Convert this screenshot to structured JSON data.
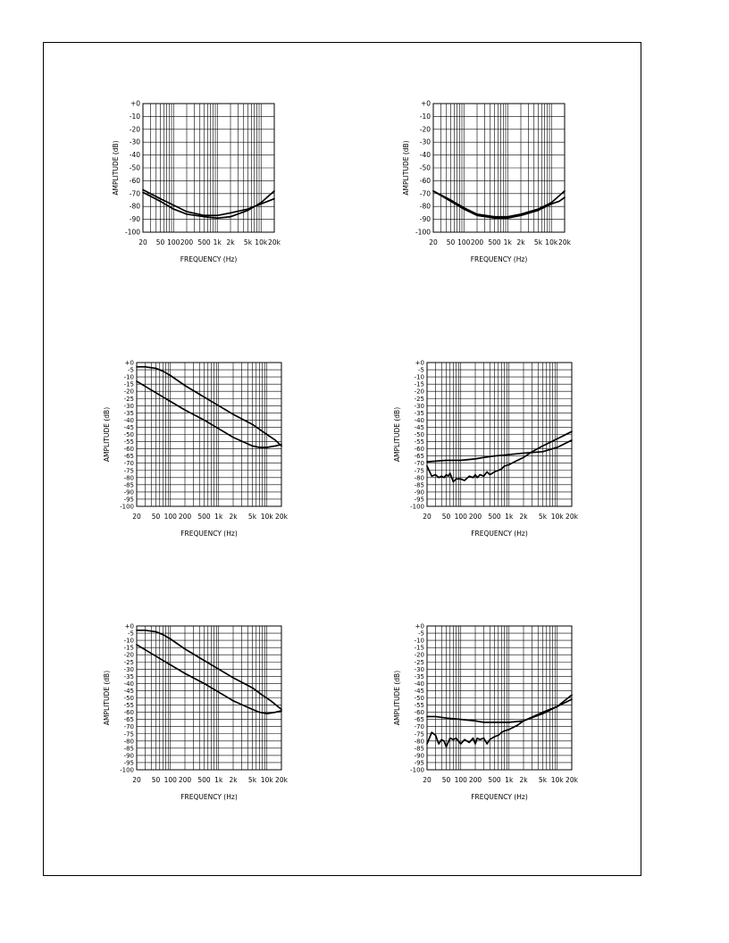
{
  "colors": {
    "line": "#000000",
    "grid": "#000000",
    "background": "#ffffff"
  },
  "chart_data": [
    {
      "type": "line",
      "x_scale": "log",
      "xlabel": "FREQUENCY (Hz)",
      "ylabel": "AMPLITUDE (dB)",
      "xlim": [
        20,
        20000
      ],
      "ylim": [
        -100,
        0
      ],
      "x_ticks": [
        20,
        50,
        100,
        200,
        500,
        1000,
        2000,
        5000,
        10000,
        20000
      ],
      "x_tick_labels": [
        "20",
        "50",
        "100",
        "200",
        "500",
        "1k",
        "2k",
        "5k",
        "10k",
        "20k"
      ],
      "y_ticks": [
        0,
        -10,
        -20,
        -30,
        -40,
        -50,
        -60,
        -70,
        -80,
        -90,
        -100
      ],
      "y_tick_labels": [
        "+0",
        "-10",
        "-20",
        "-30",
        "-40",
        "-50",
        "-60",
        "-70",
        "-80",
        "-90",
        "-100"
      ],
      "grid": true,
      "series": [
        {
          "x": [
            20,
            50,
            100,
            200,
            500,
            1000,
            2000,
            5000,
            10000,
            20000
          ],
          "y": [
            -67,
            -74,
            -79,
            -84,
            -87,
            -87,
            -85,
            -82,
            -78,
            -74
          ]
        },
        {
          "x": [
            20,
            50,
            100,
            200,
            500,
            1000,
            2000,
            5000,
            10000,
            20000
          ],
          "y": [
            -69,
            -76,
            -82,
            -86,
            -88,
            -89,
            -88,
            -83,
            -77,
            -68
          ]
        }
      ]
    },
    {
      "type": "line",
      "x_scale": "log",
      "xlabel": "FREQUENCY (Hz)",
      "ylabel": "AMPLITUDE (dB)",
      "xlim": [
        20,
        20000
      ],
      "ylim": [
        -100,
        0
      ],
      "x_ticks": [
        20,
        50,
        100,
        200,
        500,
        1000,
        2000,
        5000,
        10000,
        20000
      ],
      "x_tick_labels": [
        "20",
        "50",
        "100",
        "200",
        "500",
        "1k",
        "2k",
        "5k",
        "10k",
        "20k"
      ],
      "y_ticks": [
        0,
        -10,
        -20,
        -30,
        -40,
        -50,
        -60,
        -70,
        -80,
        -90,
        -100
      ],
      "y_tick_labels": [
        "+0",
        "-10",
        "-20",
        "-30",
        "-40",
        "-50",
        "-60",
        "-70",
        "-80",
        "-90",
        "-100"
      ],
      "grid": true,
      "series": [
        {
          "x": [
            20,
            50,
            100,
            200,
            500,
            1000,
            2000,
            5000,
            10000,
            20000
          ],
          "y": [
            -68,
            -75,
            -81,
            -86,
            -88,
            -88,
            -86,
            -82,
            -77,
            -68
          ]
        },
        {
          "x": [
            20,
            50,
            100,
            200,
            500,
            1000,
            2000,
            5000,
            10000,
            15000,
            20000
          ],
          "y": [
            -68,
            -76,
            -82,
            -87,
            -89,
            -89,
            -87,
            -83,
            -78,
            -76,
            -73
          ]
        }
      ]
    },
    {
      "type": "line",
      "x_scale": "log",
      "xlabel": "FREQUENCY (Hz)",
      "ylabel": "AMPLITUDE (dB)",
      "xlim": [
        20,
        20000
      ],
      "ylim": [
        -100,
        0
      ],
      "x_ticks": [
        20,
        50,
        100,
        200,
        500,
        1000,
        2000,
        5000,
        10000,
        20000
      ],
      "x_tick_labels": [
        "20",
        "50",
        "100",
        "200",
        "500",
        "1k",
        "2k",
        "5k",
        "10k",
        "20k"
      ],
      "y_ticks": [
        0,
        -5,
        -10,
        -15,
        -20,
        -25,
        -30,
        -35,
        -40,
        -45,
        -50,
        -55,
        -60,
        -65,
        -70,
        -75,
        -80,
        -85,
        -90,
        -95,
        -100
      ],
      "y_tick_labels": [
        "+0",
        "-5",
        "-10",
        "-15",
        "-20",
        "-25",
        "-30",
        "-35",
        "-40",
        "-45",
        "-50",
        "-55",
        "-60",
        "-65",
        "-70",
        "-75",
        "-80",
        "-85",
        "-90",
        "-95",
        "-100"
      ],
      "grid": true,
      "series": [
        {
          "x": [
            20,
            30,
            50,
            70,
            100,
            200,
            500,
            1000,
            2000,
            5000,
            10000,
            15000,
            20000
          ],
          "y": [
            -3,
            -3,
            -4,
            -6,
            -9,
            -16,
            -24,
            -30,
            -36,
            -43,
            -50,
            -54,
            -58
          ]
        },
        {
          "x": [
            20,
            50,
            100,
            200,
            500,
            1000,
            2000,
            5000,
            7000,
            10000,
            15000,
            20000
          ],
          "y": [
            -13,
            -21,
            -27,
            -33,
            -40,
            -46,
            -52,
            -58,
            -59,
            -59,
            -58,
            -57
          ]
        }
      ]
    },
    {
      "type": "line",
      "x_scale": "log",
      "xlabel": "FREQUENCY (Hz)",
      "ylabel": "AMPLITUDE (dB)",
      "xlim": [
        20,
        20000
      ],
      "ylim": [
        -100,
        0
      ],
      "x_ticks": [
        20,
        50,
        100,
        200,
        500,
        1000,
        2000,
        5000,
        10000,
        20000
      ],
      "x_tick_labels": [
        "20",
        "50",
        "100",
        "200",
        "500",
        "1k",
        "2k",
        "5k",
        "10k",
        "20k"
      ],
      "y_ticks": [
        0,
        -5,
        -10,
        -15,
        -20,
        -25,
        -30,
        -35,
        -40,
        -45,
        -50,
        -55,
        -60,
        -65,
        -70,
        -75,
        -80,
        -85,
        -90,
        -95,
        -100
      ],
      "y_tick_labels": [
        "+0",
        "-5",
        "-10",
        "-15",
        "-20",
        "-25",
        "-30",
        "-35",
        "-40",
        "-45",
        "-50",
        "-55",
        "-60",
        "-65",
        "-70",
        "-75",
        "-80",
        "-85",
        "-90",
        "-95",
        "-100"
      ],
      "grid": true,
      "series": [
        {
          "x": [
            20,
            50,
            100,
            200,
            300,
            500,
            1000,
            2000,
            5000,
            10000,
            20000
          ],
          "y": [
            -69,
            -68,
            -68,
            -67,
            -66,
            -65,
            -64,
            -63,
            -62,
            -59,
            -54
          ]
        },
        {
          "x": [
            20,
            25,
            30,
            35,
            40,
            45,
            50,
            55,
            60,
            70,
            80,
            90,
            100,
            120,
            150,
            180,
            200,
            220,
            250,
            300,
            350,
            400,
            450,
            500,
            600,
            700,
            800,
            1000,
            1500,
            2000,
            3000,
            5000,
            10000,
            20000
          ],
          "y": [
            -72,
            -79,
            -78,
            -80,
            -79,
            -80,
            -78,
            -79,
            -77,
            -83,
            -81,
            -81,
            -81,
            -82,
            -79,
            -80,
            -78,
            -80,
            -78,
            -79,
            -76,
            -78,
            -77,
            -76,
            -75,
            -74,
            -72,
            -71,
            -68,
            -66,
            -62,
            -58,
            -53,
            -48
          ]
        }
      ]
    },
    {
      "type": "line",
      "x_scale": "log",
      "xlabel": "FREQUENCY (Hz)",
      "ylabel": "AMPLITUDE (dB)",
      "xlim": [
        20,
        20000
      ],
      "ylim": [
        -100,
        0
      ],
      "x_ticks": [
        20,
        50,
        100,
        200,
        500,
        1000,
        2000,
        5000,
        10000,
        20000
      ],
      "x_tick_labels": [
        "20",
        "50",
        "100",
        "200",
        "500",
        "1k",
        "2k",
        "5k",
        "10k",
        "20k"
      ],
      "y_ticks": [
        0,
        -5,
        -10,
        -15,
        -20,
        -25,
        -30,
        -35,
        -40,
        -45,
        -50,
        -55,
        -60,
        -65,
        -70,
        -75,
        -80,
        -85,
        -90,
        -95,
        -100
      ],
      "y_tick_labels": [
        "+0",
        "-5",
        "-10",
        "-15",
        "-20",
        "-25",
        "-30",
        "-35",
        "-40",
        "-45",
        "-50",
        "-55",
        "-60",
        "-65",
        "-70",
        "-75",
        "-80",
        "-85",
        "-90",
        "-95",
        "-100"
      ],
      "grid": true,
      "series": [
        {
          "x": [
            20,
            30,
            50,
            70,
            100,
            200,
            500,
            1000,
            2000,
            5000,
            8000,
            12000,
            20000
          ],
          "y": [
            -3,
            -3,
            -4,
            -6,
            -9,
            -16,
            -24,
            -30,
            -36,
            -43,
            -48,
            -52,
            -58
          ]
        },
        {
          "x": [
            20,
            50,
            100,
            200,
            500,
            1000,
            2000,
            5000,
            7000,
            10000,
            15000,
            20000
          ],
          "y": [
            -13,
            -21,
            -27,
            -33,
            -40,
            -46,
            -52,
            -58,
            -60,
            -61,
            -60,
            -59
          ]
        }
      ]
    },
    {
      "type": "line",
      "x_scale": "log",
      "xlabel": "FREQUENCY (Hz)",
      "ylabel": "AMPLITUDE (dB)",
      "xlim": [
        20,
        20000
      ],
      "ylim": [
        -100,
        0
      ],
      "x_ticks": [
        20,
        50,
        100,
        200,
        500,
        1000,
        2000,
        5000,
        10000,
        20000
      ],
      "x_tick_labels": [
        "20",
        "50",
        "100",
        "200",
        "500",
        "1k",
        "2k",
        "5k",
        "10k",
        "20k"
      ],
      "y_ticks": [
        0,
        -5,
        -10,
        -15,
        -20,
        -25,
        -30,
        -35,
        -40,
        -45,
        -50,
        -55,
        -60,
        -65,
        -70,
        -75,
        -80,
        -85,
        -90,
        -95,
        -100
      ],
      "y_tick_labels": [
        "+0",
        "-5",
        "-10",
        "-15",
        "-20",
        "-25",
        "-30",
        "-35",
        "-40",
        "-45",
        "-50",
        "-55",
        "-60",
        "-65",
        "-70",
        "-75",
        "-80",
        "-85",
        "-90",
        "-95",
        "-100"
      ],
      "grid": true,
      "series": [
        {
          "x": [
            20,
            30,
            50,
            100,
            200,
            300,
            500,
            1000,
            2000,
            5000,
            10000,
            20000
          ],
          "y": [
            -63,
            -63,
            -64,
            -65,
            -66,
            -67,
            -67,
            -67,
            -66,
            -61,
            -56,
            -48
          ]
        },
        {
          "x": [
            20,
            25,
            30,
            35,
            40,
            45,
            50,
            60,
            70,
            80,
            100,
            120,
            150,
            180,
            200,
            220,
            250,
            300,
            350,
            400,
            500,
            600,
            700,
            800,
            1000,
            1500,
            2000,
            5000,
            10000,
            20000
          ],
          "y": [
            -82,
            -74,
            -76,
            -82,
            -79,
            -80,
            -84,
            -78,
            -79,
            -78,
            -82,
            -79,
            -81,
            -78,
            -82,
            -78,
            -79,
            -78,
            -82,
            -79,
            -77,
            -76,
            -74,
            -73,
            -72,
            -69,
            -66,
            -60,
            -56,
            -51
          ]
        }
      ]
    }
  ]
}
